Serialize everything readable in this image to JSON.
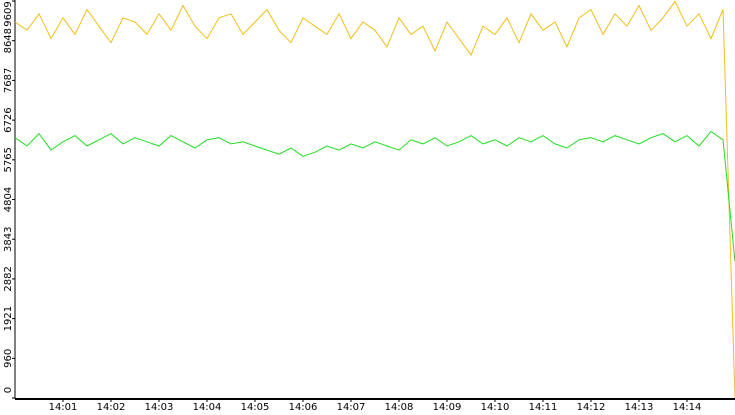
{
  "chart_data": {
    "type": "line",
    "x": [
      840,
      840.25,
      840.5,
      840.75,
      841,
      841.25,
      841.5,
      841.75,
      842,
      842.25,
      842.5,
      842.75,
      843,
      843.25,
      843.5,
      843.75,
      844,
      844.25,
      844.5,
      844.75,
      845,
      845.25,
      845.5,
      845.75,
      846,
      846.25,
      846.5,
      846.75,
      847,
      847.25,
      847.5,
      847.75,
      848,
      848.25,
      848.5,
      848.75,
      849,
      849.25,
      849.5,
      849.75,
      850,
      850.25,
      850.5,
      850.75,
      851,
      851.25,
      851.5,
      851.75,
      852,
      852.25,
      852.5,
      852.75,
      853,
      853.25,
      853.5,
      853.75,
      854,
      854.25,
      854.5,
      854.75,
      855
    ],
    "xlim": [
      840,
      855
    ],
    "xticks": [
      {
        "value": 841,
        "label": "14:01"
      },
      {
        "value": 842,
        "label": "14:02"
      },
      {
        "value": 843,
        "label": "14:03"
      },
      {
        "value": 844,
        "label": "14:04"
      },
      {
        "value": 845,
        "label": "14:05"
      },
      {
        "value": 846,
        "label": "14:06"
      },
      {
        "value": 847,
        "label": "14:07"
      },
      {
        "value": 848,
        "label": "14:08"
      },
      {
        "value": 849,
        "label": "14:09"
      },
      {
        "value": 850,
        "label": "14:10"
      },
      {
        "value": 851,
        "label": "14:11"
      },
      {
        "value": 852,
        "label": "14:12"
      },
      {
        "value": 853,
        "label": "14:13"
      },
      {
        "value": 854,
        "label": "14:14"
      }
    ],
    "ylim": [
      0,
      9609
    ],
    "yticks": [
      0,
      960,
      1921,
      2882,
      3843,
      4804,
      5765,
      6726,
      7687,
      8648,
      9609
    ],
    "series": [
      {
        "color": "#f0bf1a",
        "values": [
          9100,
          8900,
          9300,
          8700,
          9200,
          8800,
          9400,
          9000,
          8600,
          9200,
          9100,
          8800,
          9300,
          8900,
          9500,
          9000,
          8700,
          9200,
          9300,
          8800,
          9100,
          9400,
          8900,
          8600,
          9200,
          9000,
          8800,
          9300,
          8700,
          9100,
          8900,
          8500,
          9200,
          8800,
          9000,
          8400,
          9100,
          8700,
          8300,
          9000,
          8800,
          9200,
          8600,
          9300,
          8900,
          9100,
          8500,
          9200,
          9400,
          8800,
          9300,
          9000,
          9500,
          8900,
          9200,
          9600,
          9000,
          9300,
          8700,
          9400,
          0
        ]
      },
      {
        "color": "#22dd22",
        "values": [
          6300,
          6100,
          6400,
          6000,
          6200,
          6350,
          6100,
          6250,
          6400,
          6150,
          6300,
          6200,
          6100,
          6350,
          6200,
          6050,
          6250,
          6300,
          6150,
          6200,
          6100,
          6000,
          5900,
          6050,
          5850,
          5950,
          6100,
          6000,
          6150,
          6050,
          6200,
          6100,
          6000,
          6250,
          6150,
          6300,
          6100,
          6200,
          6350,
          6150,
          6250,
          6100,
          6300,
          6200,
          6350,
          6150,
          6050,
          6250,
          6300,
          6200,
          6350,
          6250,
          6150,
          6300,
          6400,
          6200,
          6350,
          6100,
          6450,
          6250,
          3300
        ]
      }
    ]
  }
}
